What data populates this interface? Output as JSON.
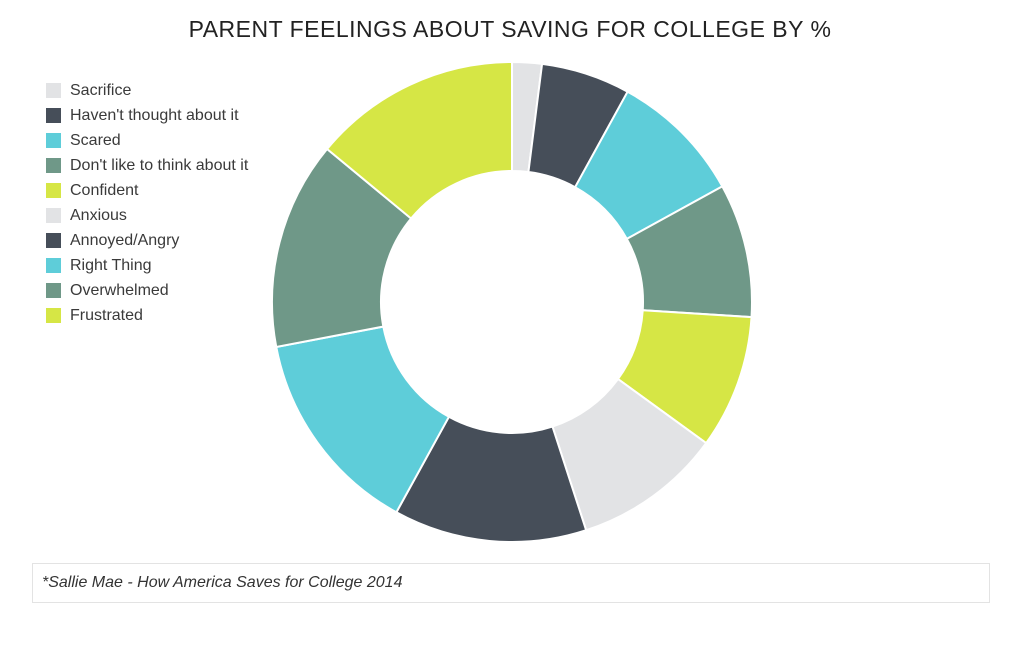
{
  "chart_data": {
    "type": "pie",
    "variant": "donut",
    "title": "PARENT FEELINGS ABOUT SAVING FOR COLLEGE BY %",
    "legend_position": "top-left",
    "categories": [
      "Sacrifice",
      "Haven't thought about it",
      "Scared",
      "Don't like to think about it",
      "Confident",
      "Anxious",
      "Annoyed/Angry",
      "Right Thing",
      "Overwhelmed",
      "Frustrated"
    ],
    "values": [
      2,
      6,
      9,
      9,
      9,
      10,
      13,
      14,
      14,
      14
    ],
    "colors": [
      "#e2e3e5",
      "#464e59",
      "#5ecdd9",
      "#6f9888",
      "#d6e645",
      "#e2e3e5",
      "#464e59",
      "#5ecdd9",
      "#6f9888",
      "#d6e645"
    ]
  },
  "source": "*Sallie Mae - How America Saves for College 2014"
}
